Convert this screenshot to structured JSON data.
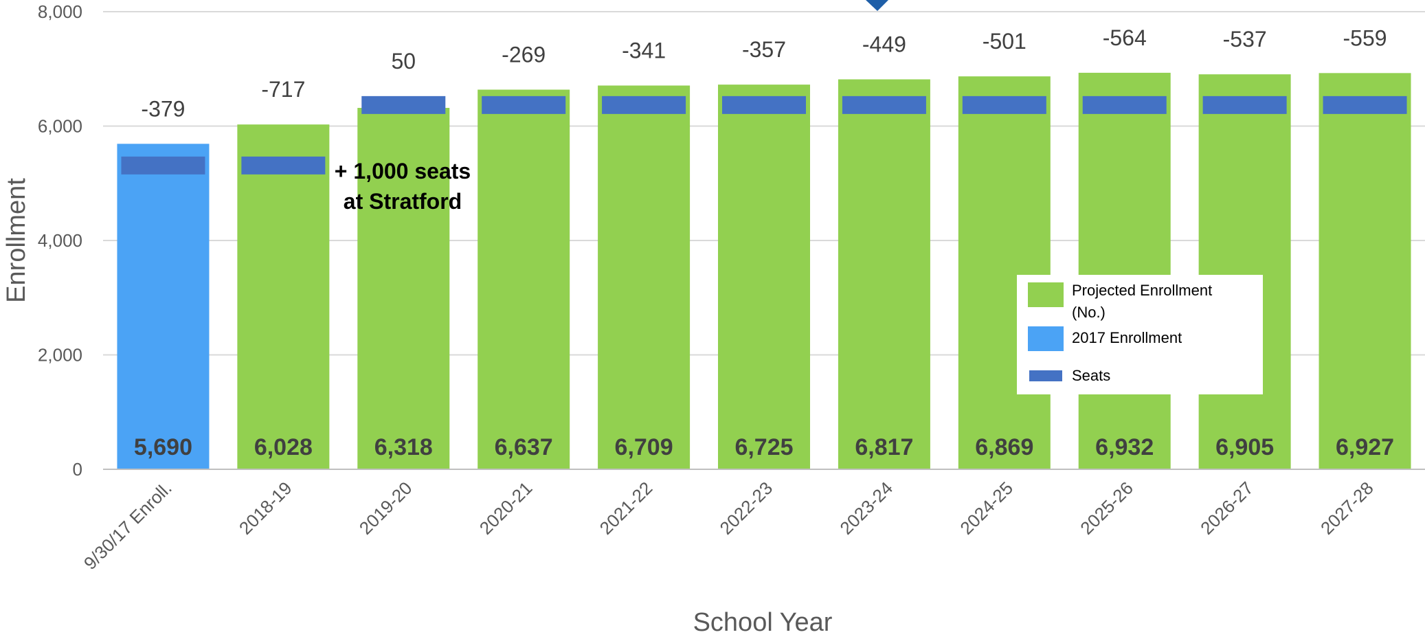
{
  "chart_data": {
    "type": "bar",
    "title": "",
    "xlabel": "School Year",
    "ylabel": "Enrollment",
    "ylim": [
      0,
      8000
    ],
    "y_ticks": [
      0,
      2000,
      4000,
      6000,
      8000
    ],
    "y_tick_labels": [
      "0",
      "2,000",
      "4,000",
      "6,000",
      "8,000"
    ],
    "grid": true,
    "legend_position": "lower-right",
    "categories": [
      "9/30/17 Enroll.",
      "2018-19",
      "2019-20",
      "2020-21",
      "2021-22",
      "2022-23",
      "2023-24",
      "2024-25",
      "2025-26",
      "2026-27",
      "2027-28"
    ],
    "series": [
      {
        "name": "Projected Enrollment (No.)",
        "type": "bar",
        "color": "#92d050",
        "values": [
          null,
          6028,
          6318,
          6637,
          6709,
          6725,
          6817,
          6869,
          6932,
          6905,
          6927
        ]
      },
      {
        "name": "2017 Enrollment",
        "type": "bar",
        "color": "#4ba3f5",
        "values": [
          5690,
          null,
          null,
          null,
          null,
          null,
          null,
          null,
          null,
          null,
          null
        ]
      },
      {
        "name": "Seats",
        "type": "marker",
        "color": "#4472c4",
        "values": [
          5311,
          5311,
          6368,
          6368,
          6368,
          6368,
          6368,
          6368,
          6368,
          6368,
          6368
        ]
      }
    ],
    "value_labels": [
      "5,690",
      "6,028",
      "6,318",
      "6,637",
      "6,709",
      "6,725",
      "6,817",
      "6,869",
      "6,932",
      "6,905",
      "6,927"
    ],
    "difference_labels": [
      "-379",
      "-717",
      "50",
      "-269",
      "-341",
      "-357",
      "-449",
      "-501",
      "-564",
      "-537",
      "-559"
    ],
    "annotations": [
      {
        "text_line1": "+ 1,000 seats",
        "text_line2": "at Stratford",
        "category": "2019-20"
      }
    ],
    "legend": [
      {
        "label_line1": "Projected Enrollment",
        "label_line2": "(No.)",
        "color": "#92d050",
        "shape": "box"
      },
      {
        "label_line1": "2017 Enrollment",
        "label_line2": "",
        "color": "#4ba3f5",
        "shape": "box"
      },
      {
        "label_line1": "Seats",
        "label_line2": "",
        "color": "#4472c4",
        "shape": "line"
      }
    ],
    "top_marker_color": "#1f5fa8"
  }
}
